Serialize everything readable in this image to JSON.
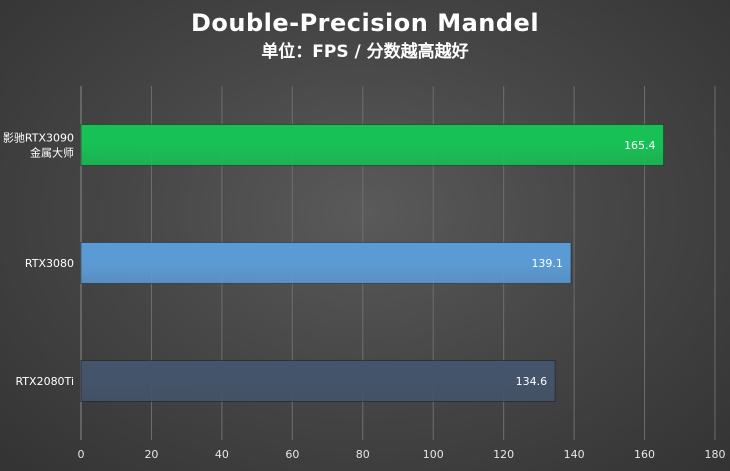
{
  "chart_data": {
    "type": "bar",
    "orientation": "horizontal",
    "title": "Double-Precision Mandel",
    "subtitle": "单位：FPS / 分数越高越好",
    "categories": [
      "影驰RTX3090\n金属大师",
      "RTX3080",
      "RTX2080Ti"
    ],
    "values": [
      165.4,
      139.1,
      134.6
    ],
    "value_labels": [
      "165.4",
      "139.1",
      "134.6"
    ],
    "bar_colors": [
      "#17c155",
      "#5b9bd5",
      "#44546a"
    ],
    "xlim": [
      0,
      180
    ],
    "x_ticks": [
      "0",
      "20",
      "40",
      "60",
      "80",
      "100",
      "120",
      "140",
      "160",
      "180"
    ],
    "xlabel": "",
    "ylabel": "",
    "grid": true,
    "legend": "none"
  }
}
